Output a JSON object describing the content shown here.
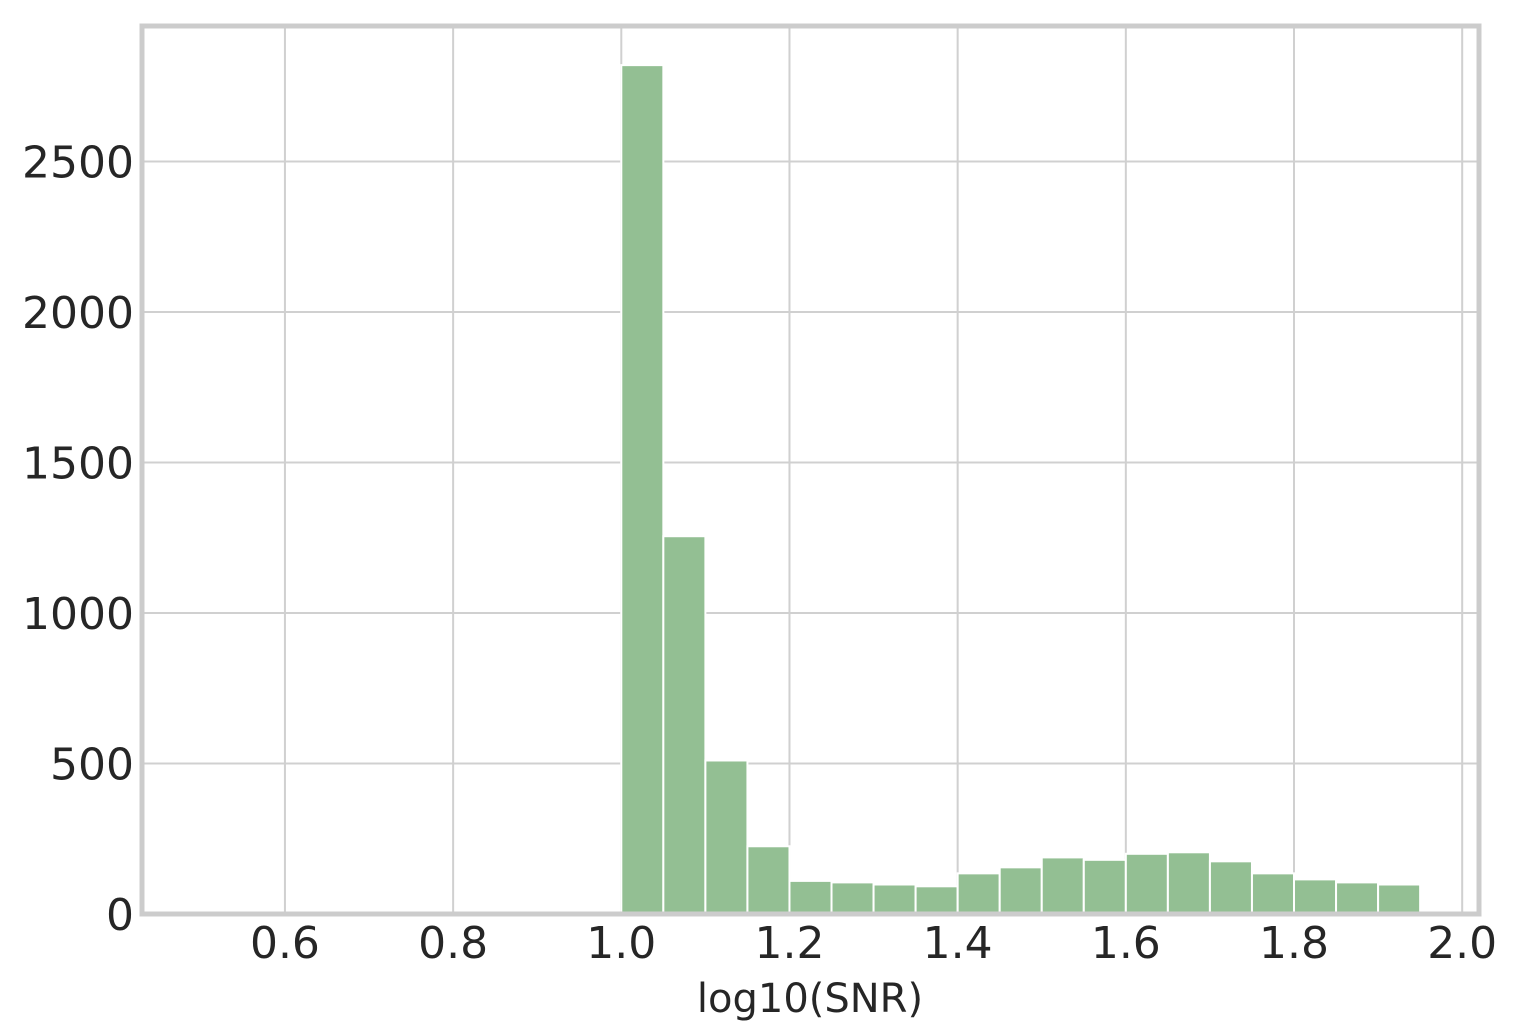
{
  "chart_data": {
    "type": "bar",
    "title": "",
    "xlabel": "log10(SNR)",
    "ylabel": "",
    "xlim": [
      0.43,
      2.02
    ],
    "ylim": [
      0,
      2950
    ],
    "xticks": [
      0.6,
      0.8,
      1.0,
      1.2,
      1.4,
      1.6,
      1.8,
      2.0
    ],
    "xtick_labels": [
      "0.6",
      "0.8",
      "1.0",
      "1.2",
      "1.4",
      "1.6",
      "1.8",
      "2.0"
    ],
    "yticks": [
      0,
      500,
      1000,
      1500,
      2000,
      2500
    ],
    "ytick_labels": [
      "0",
      "500",
      "1000",
      "1500",
      "2000",
      "2500"
    ],
    "grid": true,
    "bar_color": "#93bf93",
    "bin_width": 0.05,
    "bins": [
      {
        "x0": 1.0,
        "value": 2820
      },
      {
        "x0": 1.05,
        "value": 1255
      },
      {
        "x0": 1.1,
        "value": 510
      },
      {
        "x0": 1.15,
        "value": 225
      },
      {
        "x0": 1.2,
        "value": 110
      },
      {
        "x0": 1.25,
        "value": 105
      },
      {
        "x0": 1.3,
        "value": 98
      },
      {
        "x0": 1.35,
        "value": 92
      },
      {
        "x0": 1.4,
        "value": 135
      },
      {
        "x0": 1.45,
        "value": 155
      },
      {
        "x0": 1.5,
        "value": 188
      },
      {
        "x0": 1.55,
        "value": 180
      },
      {
        "x0": 1.6,
        "value": 200
      },
      {
        "x0": 1.65,
        "value": 205
      },
      {
        "x0": 1.7,
        "value": 175
      },
      {
        "x0": 1.75,
        "value": 135
      },
      {
        "x0": 1.8,
        "value": 115
      },
      {
        "x0": 1.85,
        "value": 105
      },
      {
        "x0": 1.9,
        "value": 98
      }
    ]
  }
}
